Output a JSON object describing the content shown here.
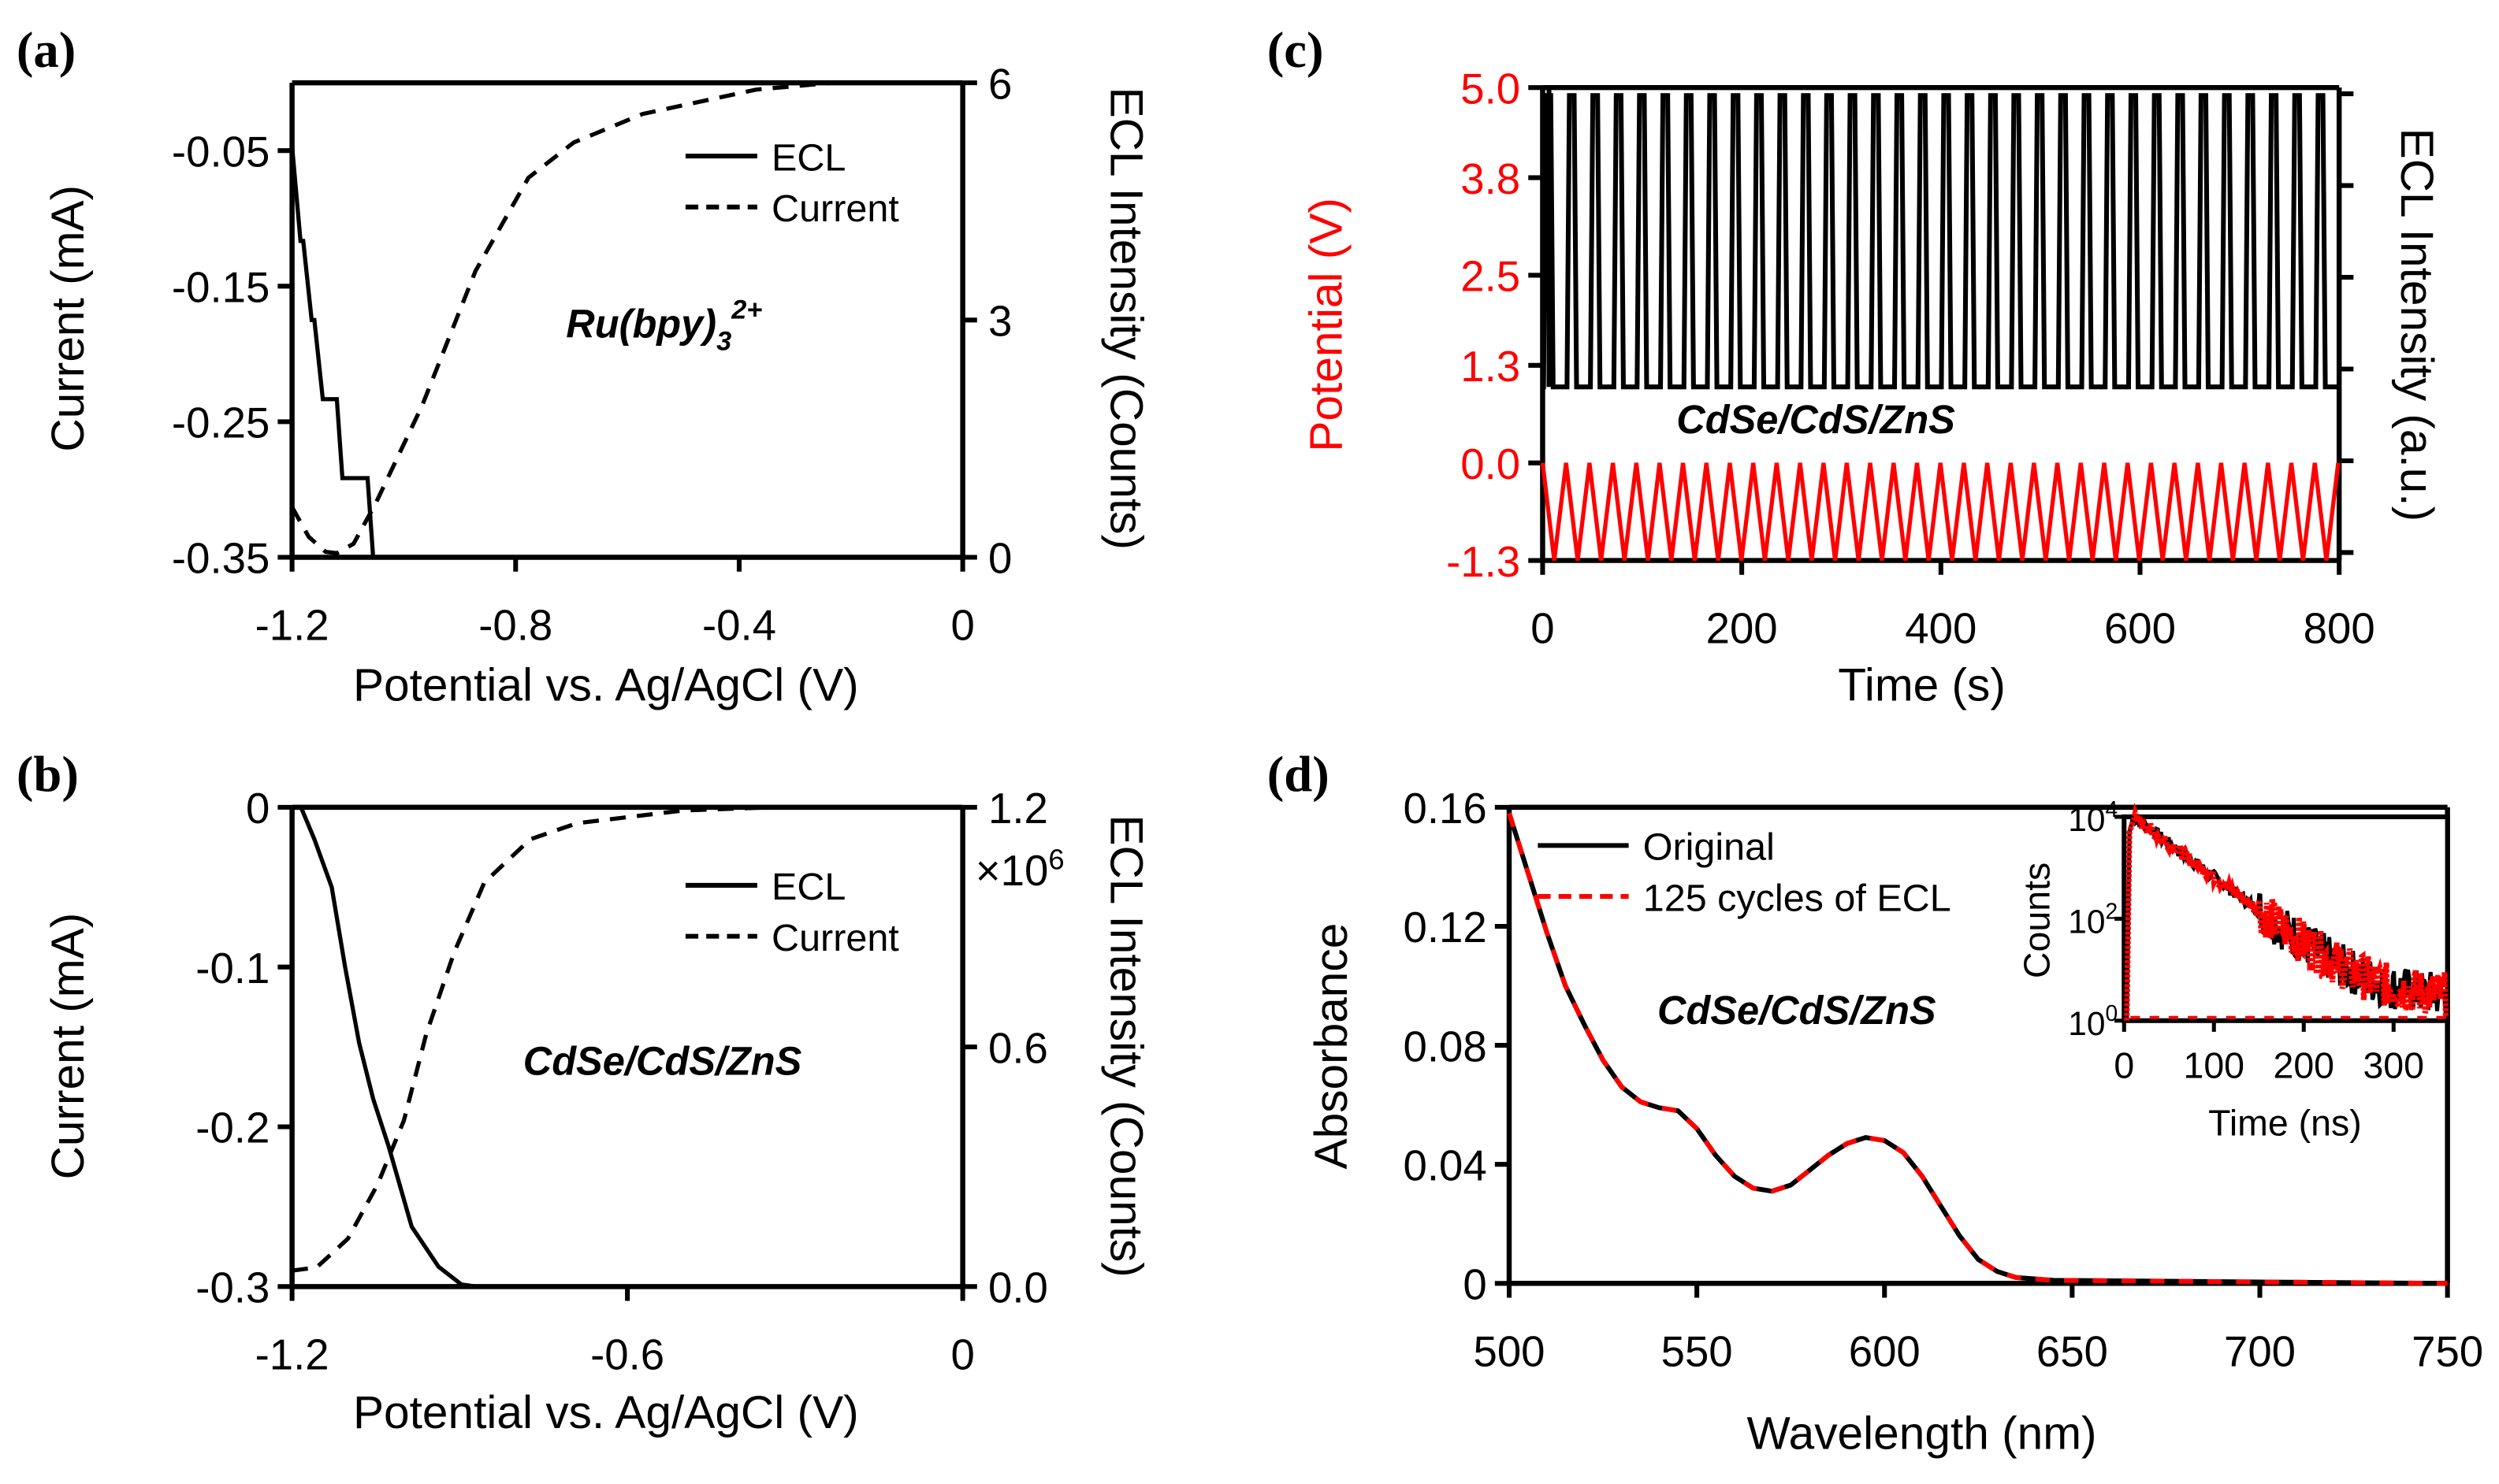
{
  "colors": {
    "black": "#000000",
    "red": "#ff0000"
  },
  "chart_data": [
    {
      "panel": "(a)",
      "type": "line",
      "xlabel": "Potential vs. Ag/AgCl (V)",
      "ylabel_left": "Current (mA)",
      "ylabel_right": "ECL Intensity (Counts)",
      "xlim": [
        -1.2,
        0
      ],
      "ylim_left": [
        -0.35,
        0
      ],
      "ylim_right": [
        0,
        6
      ],
      "x_ticks": [
        {
          "v": -1.2,
          "label": "-1.2"
        },
        {
          "v": -0.8,
          "label": "-0.8"
        },
        {
          "v": -0.4,
          "label": "-0.4"
        },
        {
          "v": 0,
          "label": "0"
        }
      ],
      "y_left_ticks": [
        {
          "v": -0.05,
          "label": "-0.05"
        },
        {
          "v": -0.15,
          "label": "-0.15"
        },
        {
          "v": -0.25,
          "label": "-0.25"
        },
        {
          "v": -0.35,
          "label": "-0.35"
        }
      ],
      "y_right_ticks": [
        {
          "v": 0,
          "label": "0"
        },
        {
          "v": 3,
          "label": "3"
        },
        {
          "v": 6,
          "label": "6"
        }
      ],
      "annotation": {
        "main": "Ru(bpy)",
        "sub": "3",
        "sup": "2+"
      },
      "legend": {
        "placement": "top-right",
        "entries": [
          "ECL",
          "Current"
        ]
      },
      "series": [
        {
          "name": "ECL",
          "axis": "right",
          "style": "solid",
          "color": "#000000",
          "x": [
            -1.2,
            -1.185,
            -1.18,
            -1.165,
            -1.16,
            -1.145,
            -1.12,
            -1.11,
            -1.065,
            -1.055
          ],
          "y": [
            5.2,
            4,
            4,
            3,
            3,
            2,
            2,
            1,
            1,
            0
          ]
        },
        {
          "name": "Current",
          "axis": "left",
          "style": "dashed",
          "color": "#000000",
          "x": [
            -1.2,
            -1.17,
            -1.14,
            -1.12,
            -1.09,
            -1.05,
            -0.967,
            -0.872,
            -0.777,
            -0.696,
            -0.573,
            -0.37,
            -0.234
          ],
          "y": [
            -0.313,
            -0.335,
            -0.346,
            -0.347,
            -0.34,
            -0.31,
            -0.238,
            -0.139,
            -0.07,
            -0.044,
            -0.023,
            -0.005,
            0
          ]
        }
      ]
    },
    {
      "panel": "(b)",
      "type": "line",
      "xlabel": "Potential vs. Ag/AgCl (V)",
      "ylabel_left": "Current (mA)",
      "ylabel_right": "ECL Intensity (Counts)",
      "right_multiplier": {
        "base": "×10",
        "exp": "6"
      },
      "xlim": [
        -1.2,
        0
      ],
      "ylim_left": [
        -0.3,
        0
      ],
      "ylim_right": [
        0,
        1.2
      ],
      "x_ticks": [
        {
          "v": -1.2,
          "label": "-1.2"
        },
        {
          "v": -0.6,
          "label": "-0.6"
        },
        {
          "v": 0,
          "label": "0"
        }
      ],
      "y_left_ticks": [
        {
          "v": 0,
          "label": "0"
        },
        {
          "v": -0.1,
          "label": "-0.1"
        },
        {
          "v": -0.2,
          "label": "-0.2"
        },
        {
          "v": -0.3,
          "label": "-0.3"
        }
      ],
      "y_right_ticks": [
        {
          "v": 1.2,
          "label": "1.2"
        },
        {
          "v": 0.6,
          "label": "0.6"
        },
        {
          "v": 0,
          "label": "0.0"
        }
      ],
      "annotation": {
        "main": "CdSe/CdS/ZnS"
      },
      "legend": {
        "placement": "top-right",
        "entries": [
          "ECL",
          "Current"
        ]
      },
      "series": [
        {
          "name": "ECL",
          "axis": "right",
          "style": "solid",
          "color": "#000000",
          "x": [
            -1.184,
            -1.16,
            -1.129,
            -1.105,
            -1.08,
            -1.055,
            -1.027,
            -0.986,
            -0.938,
            -0.897,
            -0.87
          ],
          "y": [
            1.2,
            1.12,
            1.0,
            0.8,
            0.61,
            0.47,
            0.35,
            0.15,
            0.05,
            0.005,
            0
          ]
        },
        {
          "name": "Current",
          "axis": "left",
          "style": "dashed",
          "color": "#000000",
          "x": [
            -1.2,
            -1.156,
            -1.1,
            -1.047,
            -1.0,
            -0.96,
            -0.91,
            -0.856,
            -0.774,
            -0.69,
            -0.5,
            -0.34
          ],
          "y": [
            -0.29,
            -0.288,
            -0.27,
            -0.236,
            -0.196,
            -0.142,
            -0.091,
            -0.047,
            -0.02,
            -0.01,
            -0.002,
            0
          ]
        }
      ]
    },
    {
      "panel": "(c)",
      "type": "line",
      "xlabel": "Time (s)",
      "ylabel_left": "Potential (V)",
      "ylabel_right": "ECL Intensity (a.u.)",
      "xlim": [
        0,
        800
      ],
      "ylim_left": [
        -1.3,
        5.0
      ],
      "x_ticks": [
        {
          "v": 0,
          "label": "0"
        },
        {
          "v": 200,
          "label": "200"
        },
        {
          "v": 400,
          "label": "400"
        },
        {
          "v": 600,
          "label": "600"
        },
        {
          "v": 800,
          "label": "800"
        }
      ],
      "y_left_ticks": [
        {
          "v": 5.0,
          "label": "5.0"
        },
        {
          "v": 3.8,
          "label": "3.8"
        },
        {
          "v": 2.5,
          "label": "2.5"
        },
        {
          "v": 1.3,
          "label": "1.3"
        },
        {
          "v": 0.0,
          "label": "0.0"
        },
        {
          "v": -1.3,
          "label": "-1.3"
        }
      ],
      "annotation": {
        "main": "CdSe/CdS/ZnS"
      },
      "series": [
        {
          "name": "Potential",
          "axis": "left",
          "color": "#ff0000",
          "waveform": "triangle",
          "period_s": 23.5,
          "min": -1.3,
          "max": 0.0
        },
        {
          "name": "ECL",
          "axis": "right",
          "color": "#000000",
          "waveform": "spikes",
          "period_s": 23.5,
          "baseline_fraction": 0,
          "peak_fraction": 1
        }
      ]
    },
    {
      "panel": "(d)",
      "type": "line",
      "xlabel": "Wavelength (nm)",
      "ylabel_left": "Absorbance",
      "xlim": [
        500,
        750
      ],
      "ylim_left": [
        0,
        0.16
      ],
      "x_ticks": [
        {
          "v": 500,
          "label": "500"
        },
        {
          "v": 550,
          "label": "550"
        },
        {
          "v": 600,
          "label": "600"
        },
        {
          "v": 650,
          "label": "650"
        },
        {
          "v": 700,
          "label": "700"
        },
        {
          "v": 750,
          "label": "750"
        }
      ],
      "y_left_ticks": [
        {
          "v": 0.16,
          "label": "0.16"
        },
        {
          "v": 0.12,
          "label": "0.12"
        },
        {
          "v": 0.08,
          "label": "0.08"
        },
        {
          "v": 0.04,
          "label": "0.04"
        },
        {
          "v": 0,
          "label": "0"
        }
      ],
      "annotation": {
        "main": "CdSe/CdS/ZnS"
      },
      "legend": {
        "placement": "top-left",
        "entries": [
          "Original",
          "125 cycles of ECL"
        ]
      },
      "series": [
        {
          "name": "Original",
          "style": "solid",
          "color": "#000000",
          "x": [
            500,
            505,
            510,
            515,
            520,
            525,
            530,
            535,
            540,
            545,
            550,
            555,
            560,
            565,
            570,
            575,
            580,
            585,
            590,
            595,
            600,
            605,
            610,
            615,
            620,
            625,
            630,
            635,
            645,
            700,
            750
          ],
          "y": [
            0.158,
            0.138,
            0.118,
            0.1,
            0.087,
            0.075,
            0.066,
            0.061,
            0.059,
            0.058,
            0.052,
            0.043,
            0.036,
            0.032,
            0.031,
            0.033,
            0.038,
            0.043,
            0.047,
            0.049,
            0.048,
            0.044,
            0.036,
            0.026,
            0.016,
            0.008,
            0.004,
            0.002,
            0.001,
            0.0005,
            0
          ]
        },
        {
          "name": "125 cycles of ECL",
          "style": "dashed",
          "color": "#ff0000",
          "same_as": "Original"
        }
      ],
      "inset": {
        "type": "scatter",
        "xlabel": "Time (ns)",
        "ylabel": "Counts",
        "yscale": "log",
        "xlim": [
          0,
          360
        ],
        "ylim_log10": [
          0,
          4
        ],
        "x_ticks": [
          {
            "v": 0,
            "label": "0"
          },
          {
            "v": 100,
            "label": "100"
          },
          {
            "v": 200,
            "label": "200"
          },
          {
            "v": 300,
            "label": "300"
          }
        ],
        "y_ticks": [
          {
            "v": 4,
            "base": "10",
            "exp": "4"
          },
          {
            "v": 2,
            "base": "10",
            "exp": "2"
          },
          {
            "v": 0,
            "base": "10",
            "exp": "0"
          }
        ],
        "decay": {
          "peak_time_ns": 10,
          "peak_counts": 10000,
          "lifetime_ns": 33,
          "background_counts": 3
        }
      }
    }
  ]
}
